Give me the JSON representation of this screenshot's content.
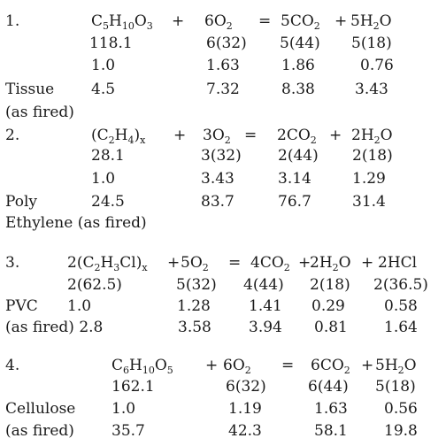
{
  "reactions": [
    {
      "number": "1.",
      "equation": {
        "reactant1": {
          "parts": [
            [
              "C",
              ""
            ],
            [
              "5",
              "sub"
            ],
            [
              "H",
              ""
            ],
            [
              "10",
              "sub"
            ],
            [
              "O",
              ""
            ],
            [
              "3",
              "sub"
            ]
          ]
        },
        "plus1": "+",
        "reactant2": {
          "parts": [
            [
              "6O",
              ""
            ],
            [
              "2",
              "sub"
            ]
          ]
        },
        "equals": "=",
        "product1": {
          "parts": [
            [
              "5CO",
              ""
            ],
            [
              "2",
              "sub"
            ]
          ]
        },
        "plus2": "+",
        "product2": {
          "parts": [
            [
              "5H",
              ""
            ],
            [
              "2",
              "sub"
            ],
            [
              "O",
              ""
            ]
          ]
        }
      },
      "molecular_weights": [
        "118.1",
        "6(32)",
        "5(44)",
        "5(18)"
      ],
      "ratios": [
        "1.0",
        "1.63",
        "1.86",
        "0.76"
      ],
      "material_label_line1": "Tissue",
      "material_label_line2": "(as fired)",
      "as_fired": [
        "4.5",
        "7.32",
        "8.38",
        "3.43"
      ]
    },
    {
      "number": "2.",
      "equation": {
        "reactant1": {
          "parts": [
            [
              "(C",
              ""
            ],
            [
              "2",
              "sub"
            ],
            [
              "H",
              ""
            ],
            [
              "4",
              "sub"
            ],
            [
              ")",
              ""
            ],
            [
              "x",
              "sub"
            ]
          ]
        },
        "plus1": "+",
        "reactant2": {
          "parts": [
            [
              "3O",
              ""
            ],
            [
              "2",
              "sub"
            ]
          ]
        },
        "equals": "=",
        "product1": {
          "parts": [
            [
              "2CO",
              ""
            ],
            [
              "2",
              "sub"
            ]
          ]
        },
        "plus2": "+",
        "product2": {
          "parts": [
            [
              "2H",
              ""
            ],
            [
              "2",
              "sub"
            ],
            [
              "O",
              ""
            ]
          ]
        }
      },
      "molecular_weights": [
        "28.1",
        "3(32)",
        "2(44)",
        "2(18)"
      ],
      "ratios": [
        "1.0",
        "3.43",
        "3.14",
        "1.29"
      ],
      "material_label_line1": "Poly",
      "material_label_line2": "Ethylene (as fired)",
      "as_fired": [
        "24.5",
        "83.7",
        "76.7",
        "31.4"
      ]
    },
    {
      "number": "3.",
      "equation": {
        "reactant1": {
          "parts": [
            [
              "2(C",
              ""
            ],
            [
              "2",
              "sub"
            ],
            [
              "H",
              ""
            ],
            [
              "3",
              "sub"
            ],
            [
              "Cl)",
              ""
            ],
            [
              "x",
              "sub"
            ]
          ]
        },
        "plus1": "+",
        "reactant2": {
          "parts": [
            [
              "5O",
              ""
            ],
            [
              "2",
              "sub"
            ]
          ]
        },
        "equals": "=",
        "product1": {
          "parts": [
            [
              "4CO",
              ""
            ],
            [
              "2",
              "sub"
            ]
          ]
        },
        "plus2": "+",
        "product2": {
          "parts": [
            [
              "2H",
              ""
            ],
            [
              "2",
              "sub"
            ],
            [
              "O",
              ""
            ]
          ]
        },
        "plus3": "+",
        "product3": {
          "parts": [
            [
              "2HCl",
              ""
            ]
          ]
        }
      },
      "molecular_weights": [
        "2(62.5)",
        "5(32)",
        "4(44)",
        "2(18)",
        "2(36.5)"
      ],
      "ratio_label": "PVC",
      "ratios": [
        "1.0",
        "1.28",
        "1.41",
        "0.29",
        "0.58"
      ],
      "as_fired_label": "(as fired) 2.8",
      "as_fired": [
        "3.58",
        "3.94",
        "0.81",
        "1.64"
      ]
    },
    {
      "number": "4.",
      "equation": {
        "reactant1": {
          "parts": [
            [
              "C",
              ""
            ],
            [
              "6",
              "sub"
            ],
            [
              "H",
              ""
            ],
            [
              "10",
              "sub"
            ],
            [
              "O",
              ""
            ],
            [
              "5",
              "sub"
            ]
          ]
        },
        "plus1": "+",
        "reactant2": {
          "parts": [
            [
              "6O",
              ""
            ],
            [
              "2",
              "sub"
            ]
          ]
        },
        "equals": "=",
        "product1": {
          "parts": [
            [
              "6CO",
              ""
            ],
            [
              "2",
              "sub"
            ]
          ]
        },
        "plus2": "+",
        "product2": {
          "parts": [
            [
              "5H",
              ""
            ],
            [
              "2",
              "sub"
            ],
            [
              "O",
              ""
            ]
          ]
        }
      },
      "molecular_weights": [
        "162.1",
        "6(32)",
        "6(44)",
        "5(18)"
      ],
      "ratio_label": "Cellulose",
      "ratios": [
        "1.0",
        "1.19",
        "1.63",
        "0.56"
      ],
      "as_fired_label": "(as fired)",
      "as_fired": [
        "35.7",
        "42.3",
        "58.1",
        "19.8"
      ]
    }
  ]
}
